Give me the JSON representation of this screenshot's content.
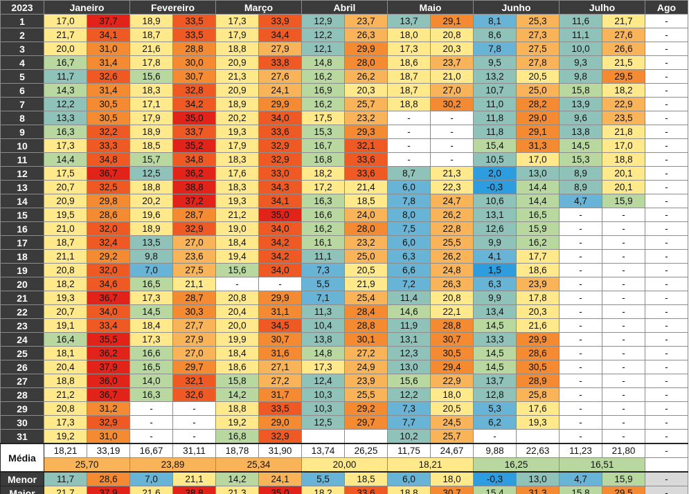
{
  "year": "2023",
  "months": [
    "Janeiro",
    "Fevereiro",
    "Março",
    "Abril",
    "Maio",
    "Junho",
    "Julho",
    "Ago"
  ],
  "days": [
    "1",
    "2",
    "3",
    "4",
    "5",
    "6",
    "7",
    "8",
    "9",
    "10",
    "11",
    "12",
    "13",
    "14",
    "15",
    "16",
    "17",
    "18",
    "19",
    "20",
    "21",
    "22",
    "23",
    "24",
    "25",
    "26",
    "27",
    "28",
    "29",
    "30",
    "31"
  ],
  "rows": [
    [
      "17,0",
      "37,7",
      "18,9",
      "33,5",
      "17,3",
      "33,9",
      "12,9",
      "23,7",
      "13,7",
      "29,1",
      "8,1",
      "25,3",
      "11,6",
      "21,7",
      "-"
    ],
    [
      "21,7",
      "34,1",
      "18,7",
      "33,5",
      "17,9",
      "34,4",
      "12,2",
      "26,3",
      "18,0",
      "20,8",
      "8,6",
      "27,3",
      "11,1",
      "27,6",
      "-"
    ],
    [
      "20,0",
      "31,0",
      "21,6",
      "28,8",
      "18,8",
      "27,9",
      "12,1",
      "29,9",
      "17,3",
      "20,3",
      "7,8",
      "27,5",
      "10,0",
      "26,6",
      "-"
    ],
    [
      "16,7",
      "31,4",
      "17,8",
      "30,0",
      "20,9",
      "33,8",
      "14,8",
      "28,0",
      "18,6",
      "23,7",
      "9,5",
      "27,8",
      "9,3",
      "21,5",
      "-"
    ],
    [
      "11,7",
      "32,6",
      "15,6",
      "30,7",
      "21,3",
      "27,6",
      "16,2",
      "26,2",
      "18,7",
      "21,0",
      "13,2",
      "20,5",
      "9,8",
      "29,5",
      "-"
    ],
    [
      "14,3",
      "31,4",
      "18,3",
      "32,8",
      "20,9",
      "24,1",
      "16,9",
      "20,3",
      "18,7",
      "27,0",
      "10,7",
      "25,0",
      "15,8",
      "18,2",
      "-"
    ],
    [
      "12,2",
      "30,5",
      "17,1",
      "34,2",
      "18,9",
      "29,9",
      "16,2",
      "25,7",
      "18,8",
      "30,2",
      "11,0",
      "28,2",
      "13,9",
      "22,9",
      "-"
    ],
    [
      "13,3",
      "30,5",
      "17,9",
      "35,0",
      "20,2",
      "34,0",
      "17,5",
      "23,2",
      "-",
      "-",
      "11,8",
      "29,0",
      "9,6",
      "23,5",
      "-"
    ],
    [
      "16,3",
      "32,2",
      "18,9",
      "33,7",
      "19,3",
      "33,6",
      "15,3",
      "29,3",
      "-",
      "-",
      "11,8",
      "29,1",
      "13,8",
      "21,8",
      "-"
    ],
    [
      "17,3",
      "33,3",
      "18,5",
      "35,2",
      "17,9",
      "32,9",
      "16,7",
      "32,1",
      "-",
      "-",
      "15,4",
      "31,3",
      "14,5",
      "17,0",
      "-"
    ],
    [
      "14,4",
      "34,8",
      "15,7",
      "34,8",
      "18,3",
      "32,9",
      "16,8",
      "33,6",
      "-",
      "-",
      "10,5",
      "17,0",
      "15,3",
      "18,8",
      "-"
    ],
    [
      "17,5",
      "36,7",
      "12,5",
      "36,2",
      "17,6",
      "33,0",
      "18,2",
      "33,6",
      "8,7",
      "21,3",
      "2,0",
      "13,0",
      "8,9",
      "20,1",
      "-"
    ],
    [
      "20,7",
      "32,5",
      "18,8",
      "38,8",
      "18,3",
      "34,3",
      "17,2",
      "21,4",
      "6,0",
      "22,3",
      "-0,3",
      "14,4",
      "8,9",
      "20,1",
      "-"
    ],
    [
      "20,9",
      "29,8",
      "20,2",
      "37,2",
      "19,3",
      "34,1",
      "16,3",
      "18,5",
      "7,8",
      "24,7",
      "10,6",
      "14,4",
      "4,7",
      "15,9",
      "-"
    ],
    [
      "19,5",
      "28,6",
      "19,6",
      "28,7",
      "21,2",
      "35,0",
      "16,6",
      "24,0",
      "8,0",
      "26,2",
      "13,1",
      "16,5",
      "-",
      "-",
      "-"
    ],
    [
      "21,0",
      "32,0",
      "18,9",
      "32,9",
      "19,0",
      "34,0",
      "16,2",
      "28,0",
      "7,5",
      "22,8",
      "12,6",
      "15,9",
      "-",
      "-",
      "-"
    ],
    [
      "18,7",
      "32,4",
      "13,5",
      "27,0",
      "18,4",
      "34,2",
      "16,1",
      "23,2",
      "6,0",
      "25,5",
      "9,9",
      "16,2",
      "-",
      "-",
      "-"
    ],
    [
      "21,1",
      "29,2",
      "9,8",
      "23,6",
      "19,4",
      "34,2",
      "11,1",
      "25,0",
      "6,3",
      "26,2",
      "4,1",
      "17,7",
      "-",
      "-",
      "-"
    ],
    [
      "20,8",
      "32,0",
      "7,0",
      "27,5",
      "15,6",
      "34,0",
      "7,3",
      "20,5",
      "6,6",
      "24,8",
      "1,5",
      "18,6",
      "-",
      "-",
      "-"
    ],
    [
      "18,2",
      "34,6",
      "16,5",
      "21,1",
      "-",
      "-",
      "5,5",
      "21,9",
      "7,2",
      "26,3",
      "6,3",
      "23,9",
      "-",
      "-",
      "-"
    ],
    [
      "19,3",
      "36,7",
      "17,3",
      "28,7",
      "20,8",
      "29,9",
      "7,1",
      "25,4",
      "11,4",
      "20,8",
      "9,9",
      "17,8",
      "-",
      "-",
      "-"
    ],
    [
      "20,7",
      "34,0",
      "14,5",
      "30,3",
      "20,4",
      "31,1",
      "11,3",
      "28,4",
      "14,6",
      "22,1",
      "13,4",
      "20,3",
      "-",
      "-",
      "-"
    ],
    [
      "19,1",
      "33,4",
      "18,4",
      "27,7",
      "20,0",
      "34,5",
      "10,4",
      "28,8",
      "11,9",
      "28,8",
      "14,5",
      "21,6",
      "-",
      "-",
      "-"
    ],
    [
      "16,4",
      "35,5",
      "17,3",
      "27,9",
      "19,9",
      "30,7",
      "13,8",
      "30,1",
      "13,1",
      "30,7",
      "13,3",
      "29,9",
      "-",
      "-",
      "-"
    ],
    [
      "18,1",
      "36,2",
      "16,6",
      "27,0",
      "18,4",
      "31,6",
      "14,8",
      "27,2",
      "12,3",
      "30,5",
      "14,5",
      "28,6",
      "-",
      "-",
      "-"
    ],
    [
      "20,4",
      "37,9",
      "16,5",
      "29,7",
      "18,6",
      "27,1",
      "17,3",
      "24,9",
      "13,0",
      "29,4",
      "14,5",
      "30,5",
      "-",
      "-",
      "-"
    ],
    [
      "18,8",
      "36,0",
      "14,0",
      "32,1",
      "15,8",
      "27,2",
      "12,4",
      "23,9",
      "15,6",
      "22,9",
      "13,7",
      "28,9",
      "-",
      "-",
      "-"
    ],
    [
      "21,2",
      "36,7",
      "16,3",
      "32,6",
      "14,2",
      "31,7",
      "10,3",
      "25,5",
      "12,2",
      "18,0",
      "12,8",
      "25,8",
      "-",
      "-",
      "-"
    ],
    [
      "20,8",
      "31,2",
      "-",
      "-",
      "18,8",
      "33,5",
      "10,3",
      "29,2",
      "7,3",
      "20,5",
      "5,3",
      "17,6",
      "-",
      "-",
      "-"
    ],
    [
      "17,3",
      "32,9",
      "-",
      "-",
      "19,2",
      "29,0",
      "12,5",
      "29,7",
      "7,7",
      "24,5",
      "6,2",
      "19,3",
      "-",
      "-",
      "-"
    ],
    [
      "19,2",
      "31,0",
      "-",
      "-",
      "16,8",
      "32,9",
      "",
      "",
      "10,2",
      "25,7",
      "-",
      "",
      "-",
      "-",
      "-"
    ]
  ],
  "summary": {
    "media_label": "Média",
    "menor_label": "Menor",
    "maior_label": "Maior",
    "media": [
      "18,21",
      "33,19",
      "16,67",
      "31,11",
      "18,78",
      "31,90",
      "13,74",
      "26,25",
      "11,75",
      "24,67",
      "9,88",
      "22,63",
      "11,23",
      "21,80",
      "-"
    ],
    "media_combined": [
      "25,70",
      "23,89",
      "25,34",
      "20,00",
      "18,21",
      "16,25",
      "16,51"
    ],
    "menor": [
      "11,7",
      "28,6",
      "7,0",
      "21,1",
      "14,2",
      "24,1",
      "5,5",
      "18,5",
      "6,0",
      "18,0",
      "-0,3",
      "13,0",
      "4,7",
      "15,9",
      "-"
    ],
    "maior": [
      "21,7",
      "37,9",
      "21,6",
      "38,8",
      "21,3",
      "35,0",
      "18,2",
      "33,6",
      "18,8",
      "30,7",
      "15,4",
      "31,3",
      "15,8",
      "29,5",
      "-"
    ]
  },
  "colors": {
    "header_bg": "#3b3b3b",
    "blue": "#2e9de0",
    "light_blue": "#67b4d6",
    "teal": "#8fc2b8",
    "green": "#b8d8a0",
    "yellow": "#ffe98a",
    "orange": "#f9b45a",
    "dark_orange": "#f48a32",
    "red_orange": "#ef5a24",
    "red": "#e2231a"
  }
}
